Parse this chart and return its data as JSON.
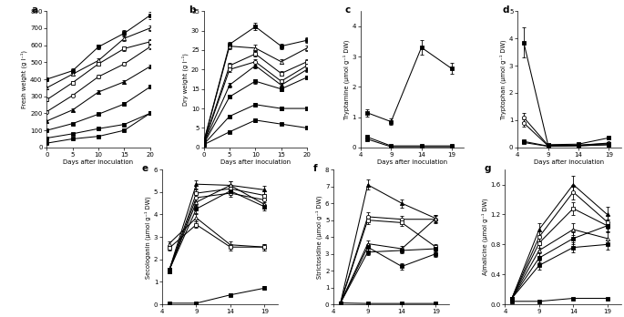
{
  "panel_a": {
    "label": "a",
    "ylabel": "Fresh weight (g l⁻¹)",
    "xlabel": "Days after inoculation",
    "xlim": [
      0,
      20
    ],
    "ylim": [
      0,
      800
    ],
    "yticks": [
      0,
      100,
      200,
      300,
      400,
      500,
      600,
      700,
      800
    ],
    "xticks": [
      0,
      5,
      10,
      15,
      20
    ],
    "series": [
      {
        "x": [
          0,
          5,
          10,
          15,
          20
        ],
        "y": [
          400,
          450,
          590,
          670,
          775
        ],
        "yerr": [
          8,
          12,
          15,
          18,
          20
        ],
        "marker": "s",
        "filled": true
      },
      {
        "x": [
          0,
          5,
          10,
          15,
          20
        ],
        "y": [
          350,
          430,
          510,
          640,
          700
        ],
        "yerr": [
          8,
          10,
          12,
          15,
          18
        ],
        "marker": "^",
        "filled": false
      },
      {
        "x": [
          0,
          5,
          10,
          15,
          20
        ],
        "y": [
          280,
          380,
          490,
          580,
          620
        ],
        "yerr": [
          8,
          10,
          12,
          14,
          16
        ],
        "marker": "s",
        "filled": false
      },
      {
        "x": [
          0,
          5,
          10,
          15,
          20
        ],
        "y": [
          210,
          305,
          415,
          490,
          590
        ],
        "yerr": [
          6,
          8,
          10,
          12,
          14
        ],
        "marker": "o",
        "filled": false
      },
      {
        "x": [
          0,
          5,
          10,
          15,
          20
        ],
        "y": [
          155,
          220,
          325,
          385,
          475
        ],
        "yerr": [
          5,
          7,
          9,
          11,
          13
        ],
        "marker": "^",
        "filled": true
      },
      {
        "x": [
          0,
          5,
          10,
          15,
          20
        ],
        "y": [
          100,
          140,
          195,
          255,
          355
        ],
        "yerr": [
          4,
          5,
          7,
          9,
          11
        ],
        "marker": "s",
        "filled": true
      },
      {
        "x": [
          0,
          5,
          10,
          15,
          20
        ],
        "y": [
          55,
          80,
          110,
          135,
          200
        ],
        "yerr": [
          3,
          4,
          5,
          7,
          9
        ],
        "marker": "s",
        "filled": true
      },
      {
        "x": [
          0,
          5,
          10,
          15,
          20
        ],
        "y": [
          25,
          50,
          65,
          100,
          200
        ],
        "yerr": [
          2,
          3,
          4,
          5,
          7
        ],
        "marker": "s",
        "filled": true
      }
    ]
  },
  "panel_b": {
    "label": "b",
    "ylabel": "Dry weight (g l⁻¹)",
    "xlabel": "Days after inoculation",
    "xlim": [
      0,
      20
    ],
    "ylim": [
      0,
      35
    ],
    "yticks": [
      0,
      5,
      10,
      15,
      20,
      25,
      30,
      35
    ],
    "xticks": [
      0,
      5,
      10,
      15,
      20
    ],
    "series": [
      {
        "x": [
          0,
          5,
          10,
          15,
          20
        ],
        "y": [
          1.5,
          26.5,
          31,
          26,
          27.5
        ],
        "yerr": [
          0.2,
          0.7,
          0.9,
          0.7,
          0.7
        ],
        "marker": "s",
        "filled": true
      },
      {
        "x": [
          0,
          5,
          10,
          15,
          20
        ],
        "y": [
          1.3,
          26,
          25.5,
          22,
          25.5
        ],
        "yerr": [
          0.2,
          0.7,
          0.8,
          0.6,
          0.7
        ],
        "marker": "^",
        "filled": false
      },
      {
        "x": [
          0,
          5,
          10,
          15,
          20
        ],
        "y": [
          1.2,
          21,
          24,
          19,
          22
        ],
        "yerr": [
          0.2,
          0.6,
          0.7,
          0.6,
          0.7
        ],
        "marker": "s",
        "filled": false
      },
      {
        "x": [
          0,
          5,
          10,
          15,
          20
        ],
        "y": [
          1.1,
          20,
          22,
          17,
          21
        ],
        "yerr": [
          0.2,
          0.6,
          0.7,
          0.5,
          0.6
        ],
        "marker": "o",
        "filled": false
      },
      {
        "x": [
          0,
          5,
          10,
          15,
          20
        ],
        "y": [
          1.0,
          16,
          21,
          16,
          20
        ],
        "yerr": [
          0.2,
          0.5,
          0.6,
          0.5,
          0.6
        ],
        "marker": "^",
        "filled": true
      },
      {
        "x": [
          0,
          5,
          10,
          15,
          20
        ],
        "y": [
          0.9,
          13,
          17,
          15,
          18
        ],
        "yerr": [
          0.2,
          0.5,
          0.6,
          0.5,
          0.5
        ],
        "marker": "s",
        "filled": true
      },
      {
        "x": [
          0,
          5,
          10,
          15,
          20
        ],
        "y": [
          0.8,
          8,
          11,
          10,
          10
        ],
        "yerr": [
          0.2,
          0.4,
          0.5,
          0.4,
          0.4
        ],
        "marker": "s",
        "filled": true
      },
      {
        "x": [
          0,
          5,
          10,
          15,
          20
        ],
        "y": [
          0.7,
          4,
          7,
          6,
          5
        ],
        "yerr": [
          0.2,
          0.3,
          0.4,
          0.3,
          0.3
        ],
        "marker": "s",
        "filled": true
      }
    ]
  },
  "panel_c": {
    "label": "c",
    "ylabel": "Tryptamine (µmol g⁻¹ DW)",
    "xlabel": "Days after inoculation",
    "xlim": [
      4,
      21
    ],
    "ylim": [
      0,
      4.5
    ],
    "yticks": [
      0,
      1,
      2,
      3,
      4
    ],
    "xticks": [
      4,
      9,
      14,
      19
    ],
    "series": [
      {
        "x": [
          5,
          9,
          14,
          19
        ],
        "y": [
          1.15,
          0.85,
          3.3,
          2.6
        ],
        "yerr": [
          0.12,
          0.1,
          0.25,
          0.18
        ],
        "marker": "s",
        "filled": true
      },
      {
        "x": [
          5,
          9,
          14,
          19
        ],
        "y": [
          0.35,
          0.05,
          0.05,
          0.05
        ],
        "yerr": [
          0.05,
          0.02,
          0.02,
          0.02
        ],
        "marker": "s",
        "filled": true
      },
      {
        "x": [
          5,
          9,
          14,
          19
        ],
        "y": [
          0.28,
          0.02,
          0.02,
          0.02
        ],
        "yerr": [
          0.04,
          0.01,
          0.01,
          0.01
        ],
        "marker": "s",
        "filled": true
      }
    ]
  },
  "panel_d": {
    "label": "d",
    "ylabel": "Tryptophan (µmol g⁻¹ DW)",
    "xlabel": "Days after inoculation",
    "xlim": [
      4,
      21
    ],
    "ylim": [
      0,
      5
    ],
    "yticks": [
      0,
      1,
      2,
      3,
      4,
      5
    ],
    "xticks": [
      4,
      9,
      14,
      19
    ],
    "series": [
      {
        "x": [
          5,
          9,
          14,
          19
        ],
        "y": [
          3.85,
          0.1,
          0.12,
          0.35
        ],
        "yerr": [
          0.55,
          0.05,
          0.05,
          0.06
        ],
        "marker": "s",
        "filled": true
      },
      {
        "x": [
          5,
          9,
          14,
          19
        ],
        "y": [
          1.1,
          0.08,
          0.08,
          0.16
        ],
        "yerr": [
          0.18,
          0.03,
          0.03,
          0.04
        ],
        "marker": "o",
        "filled": false
      },
      {
        "x": [
          5,
          9,
          14,
          19
        ],
        "y": [
          0.9,
          0.06,
          0.06,
          0.1
        ],
        "yerr": [
          0.14,
          0.02,
          0.02,
          0.03
        ],
        "marker": "o",
        "filled": false
      },
      {
        "x": [
          5,
          9,
          14,
          19
        ],
        "y": [
          0.22,
          0.05,
          0.08,
          0.14
        ],
        "yerr": [
          0.04,
          0.02,
          0.02,
          0.03
        ],
        "marker": "s",
        "filled": true
      },
      {
        "x": [
          5,
          9,
          14,
          19
        ],
        "y": [
          0.18,
          0.04,
          0.06,
          0.1
        ],
        "yerr": [
          0.03,
          0.01,
          0.02,
          0.02
        ],
        "marker": "s",
        "filled": true
      }
    ]
  },
  "panel_e": {
    "label": "e",
    "ylabel": "Secologanin (µmol g⁻¹ DW)",
    "xlabel": "Days after inoculation",
    "xlim": [
      4,
      21
    ],
    "ylim": [
      0,
      6
    ],
    "yticks": [
      0,
      1,
      2,
      3,
      4,
      5,
      6
    ],
    "xticks": [
      4,
      9,
      14,
      19
    ],
    "series": [
      {
        "x": [
          5,
          9,
          14,
          19
        ],
        "y": [
          1.5,
          5.35,
          5.3,
          5.1
        ],
        "yerr": [
          0.12,
          0.18,
          0.18,
          0.18
        ],
        "marker": "^",
        "filled": true
      },
      {
        "x": [
          5,
          9,
          14,
          19
        ],
        "y": [
          1.5,
          4.95,
          5.15,
          4.85
        ],
        "yerr": [
          0.12,
          0.18,
          0.18,
          0.18
        ],
        "marker": "s",
        "filled": false
      },
      {
        "x": [
          5,
          9,
          14,
          19
        ],
        "y": [
          1.5,
          4.75,
          4.95,
          4.65
        ],
        "yerr": [
          0.12,
          0.18,
          0.18,
          0.18
        ],
        "marker": "o",
        "filled": false
      },
      {
        "x": [
          5,
          9,
          14,
          19
        ],
        "y": [
          1.5,
          4.55,
          5.3,
          4.45
        ],
        "yerr": [
          0.12,
          0.18,
          0.18,
          0.18
        ],
        "marker": "^",
        "filled": false
      },
      {
        "x": [
          5,
          9,
          14,
          19
        ],
        "y": [
          1.5,
          4.25,
          5.05,
          4.35
        ],
        "yerr": [
          0.12,
          0.18,
          0.18,
          0.18
        ],
        "marker": "s",
        "filled": true
      },
      {
        "x": [
          5,
          9,
          14,
          19
        ],
        "y": [
          2.7,
          3.85,
          2.65,
          2.55
        ],
        "yerr": [
          0.12,
          0.15,
          0.15,
          0.15
        ],
        "marker": "^",
        "filled": false
      },
      {
        "x": [
          5,
          9,
          14,
          19
        ],
        "y": [
          2.5,
          3.55,
          2.55,
          2.55
        ],
        "yerr": [
          0.12,
          0.15,
          0.15,
          0.15
        ],
        "marker": "s",
        "filled": false
      },
      {
        "x": [
          5,
          9,
          14,
          19
        ],
        "y": [
          0.05,
          0.05,
          0.42,
          0.72
        ],
        "yerr": [
          0.01,
          0.01,
          0.05,
          0.08
        ],
        "marker": "s",
        "filled": true
      }
    ]
  },
  "panel_f": {
    "label": "f",
    "ylabel": "Strictosidine (µmol g⁻¹ DW)",
    "xlabel": "Days after inoculation",
    "xlim": [
      4,
      21
    ],
    "ylim": [
      0,
      8
    ],
    "yticks": [
      0,
      1,
      2,
      3,
      4,
      5,
      6,
      7,
      8
    ],
    "xticks": [
      4,
      9,
      14,
      19
    ],
    "series": [
      {
        "x": [
          5,
          9,
          14,
          19
        ],
        "y": [
          0.08,
          7.1,
          6.0,
          5.1
        ],
        "yerr": [
          0.02,
          0.3,
          0.25,
          0.22
        ],
        "marker": "^",
        "filled": true
      },
      {
        "x": [
          5,
          9,
          14,
          19
        ],
        "y": [
          0.08,
          5.2,
          5.05,
          5.05
        ],
        "yerr": [
          0.02,
          0.25,
          0.22,
          0.22
        ],
        "marker": "o",
        "filled": false
      },
      {
        "x": [
          5,
          9,
          14,
          19
        ],
        "y": [
          0.08,
          5.0,
          4.85,
          3.4
        ],
        "yerr": [
          0.02,
          0.22,
          0.2,
          0.18
        ],
        "marker": "s",
        "filled": false
      },
      {
        "x": [
          5,
          9,
          14,
          19
        ],
        "y": [
          0.08,
          3.6,
          3.3,
          5.1
        ],
        "yerr": [
          0.02,
          0.2,
          0.18,
          0.22
        ],
        "marker": "^",
        "filled": false
      },
      {
        "x": [
          5,
          9,
          14,
          19
        ],
        "y": [
          0.08,
          3.4,
          2.25,
          3.0
        ],
        "yerr": [
          0.02,
          0.2,
          0.18,
          0.18
        ],
        "marker": "s",
        "filled": true
      },
      {
        "x": [
          5,
          9,
          14,
          19
        ],
        "y": [
          0.08,
          3.1,
          3.2,
          3.3
        ],
        "yerr": [
          0.02,
          0.18,
          0.18,
          0.18
        ],
        "marker": "s",
        "filled": true
      },
      {
        "x": [
          5,
          9,
          14,
          19
        ],
        "y": [
          0.08,
          0.05,
          0.05,
          0.05
        ],
        "yerr": [
          0.01,
          0.01,
          0.01,
          0.01
        ],
        "marker": "s",
        "filled": true
      }
    ]
  },
  "panel_g": {
    "label": "g",
    "ylabel": "Ajmalicine (µmol g⁻¹ DW)",
    "xlabel": "Days after inoculation",
    "xlim": [
      4,
      21
    ],
    "ylim": [
      0,
      1.8
    ],
    "yticks": [
      0,
      0.4,
      0.8,
      1.2,
      1.6
    ],
    "xticks": [
      4,
      9,
      14,
      19
    ],
    "series": [
      {
        "x": [
          5,
          9,
          14,
          19
        ],
        "y": [
          0.08,
          1.0,
          1.6,
          1.2
        ],
        "yerr": [
          0.02,
          0.08,
          0.12,
          0.1
        ],
        "marker": "^",
        "filled": true
      },
      {
        "x": [
          5,
          9,
          14,
          19
        ],
        "y": [
          0.08,
          0.9,
          1.5,
          1.1
        ],
        "yerr": [
          0.02,
          0.08,
          0.1,
          0.09
        ],
        "marker": "o",
        "filled": false
      },
      {
        "x": [
          5,
          9,
          14,
          19
        ],
        "y": [
          0.08,
          0.82,
          1.28,
          1.05
        ],
        "yerr": [
          0.02,
          0.07,
          0.09,
          0.08
        ],
        "marker": "s",
        "filled": false
      },
      {
        "x": [
          5,
          9,
          14,
          19
        ],
        "y": [
          0.08,
          0.72,
          1.0,
          0.88
        ],
        "yerr": [
          0.02,
          0.07,
          0.08,
          0.08
        ],
        "marker": "^",
        "filled": false
      },
      {
        "x": [
          5,
          9,
          14,
          19
        ],
        "y": [
          0.08,
          0.62,
          0.88,
          1.05
        ],
        "yerr": [
          0.02,
          0.06,
          0.08,
          0.08
        ],
        "marker": "s",
        "filled": true
      },
      {
        "x": [
          5,
          9,
          14,
          19
        ],
        "y": [
          0.08,
          0.52,
          0.76,
          0.8
        ],
        "yerr": [
          0.02,
          0.06,
          0.07,
          0.07
        ],
        "marker": "s",
        "filled": true
      },
      {
        "x": [
          5,
          9,
          14,
          19
        ],
        "y": [
          0.04,
          0.04,
          0.08,
          0.08
        ],
        "yerr": [
          0.01,
          0.01,
          0.01,
          0.01
        ],
        "marker": "s",
        "filled": true
      }
    ]
  }
}
